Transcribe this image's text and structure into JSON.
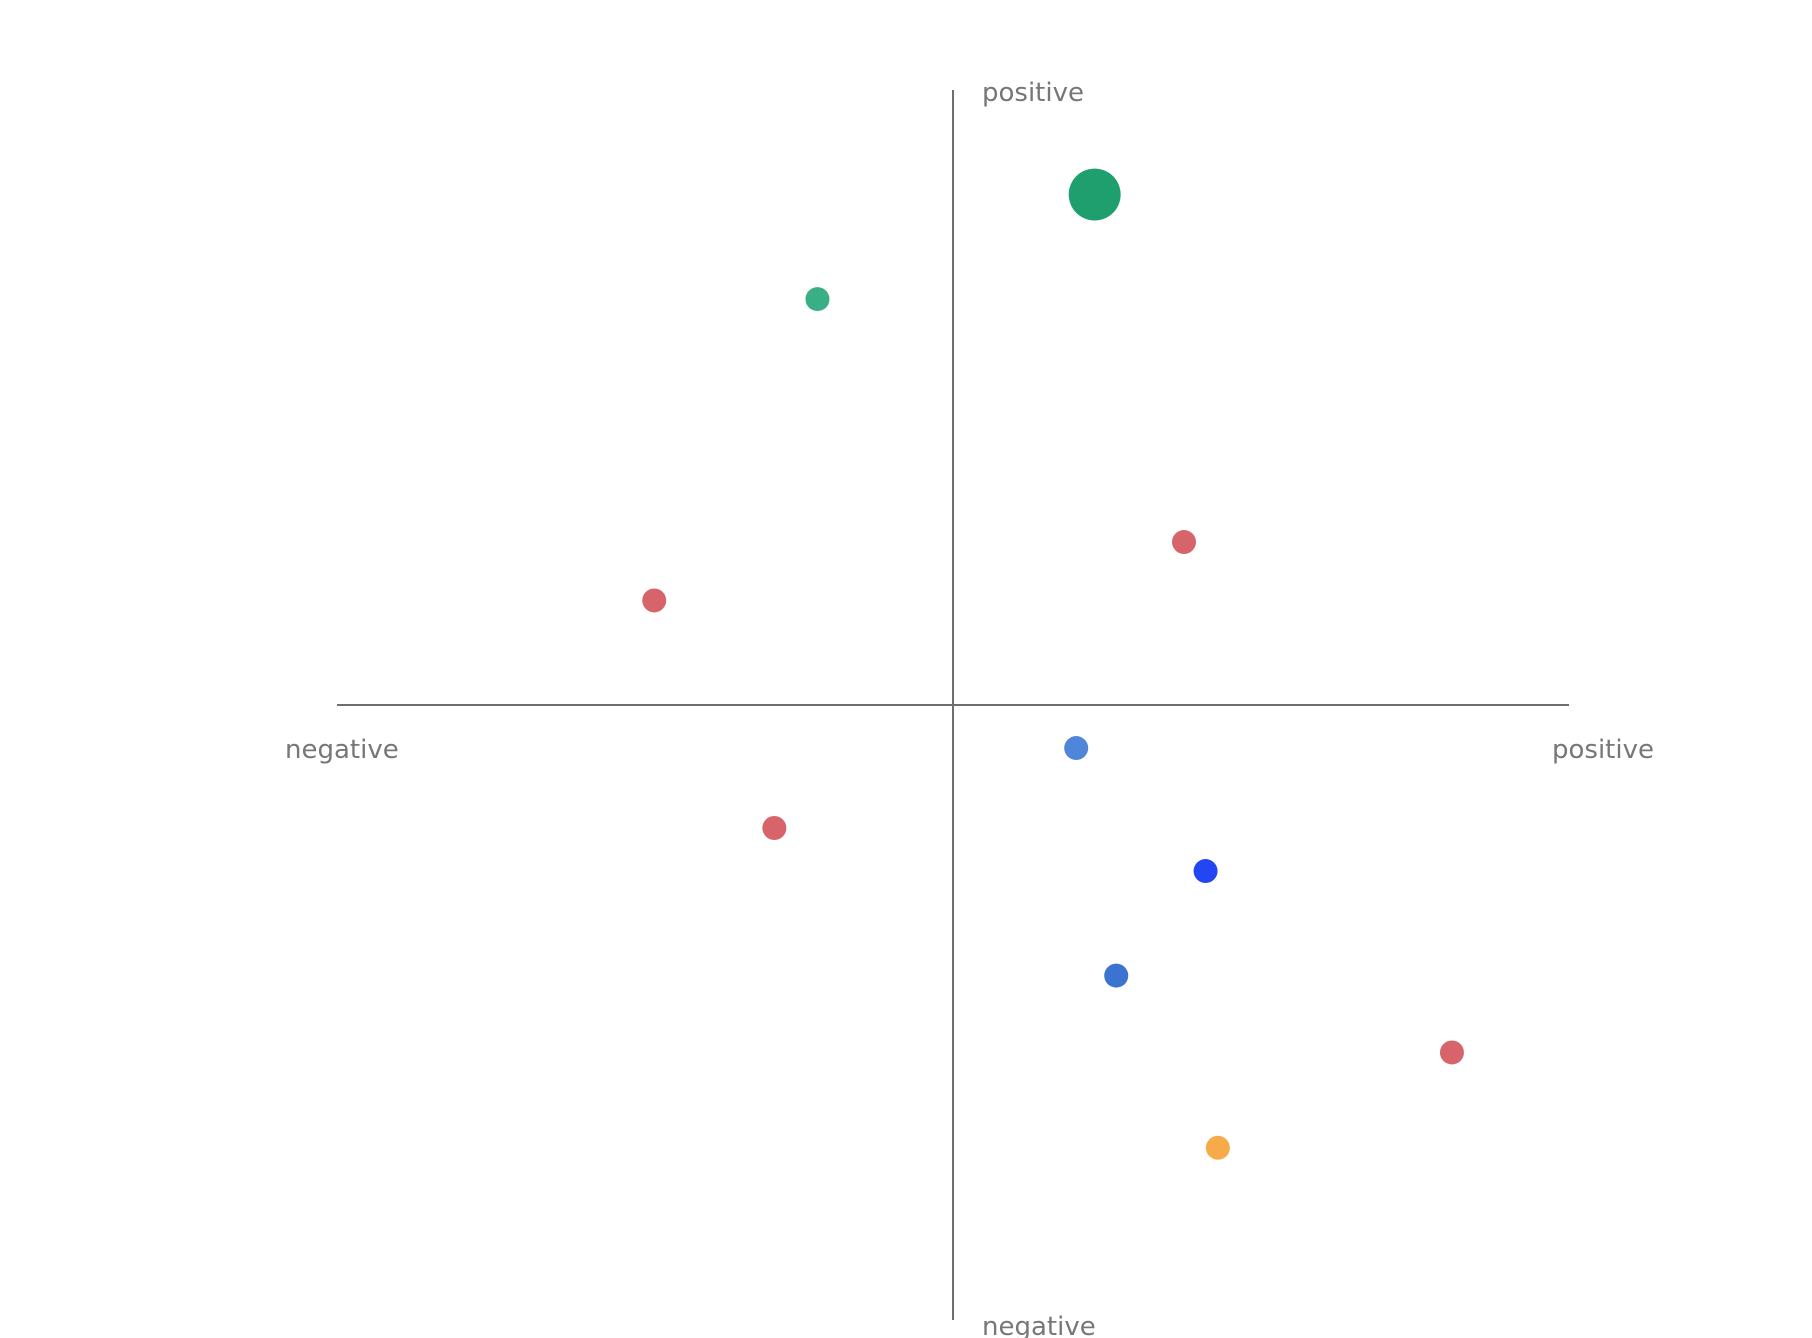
{
  "chart_data": {
    "type": "scatter",
    "title": "",
    "xlim": [
      -1,
      1
    ],
    "ylim": [
      -1,
      1
    ],
    "grid": false,
    "legend": "none",
    "axis_labels": {
      "x_negative": "negative",
      "x_positive": "positive",
      "y_positive": "positive",
      "y_negative": "negative"
    },
    "points": [
      {
        "x": 0.23,
        "y": 0.83,
        "size": 3.0,
        "color": "#1f9e6e"
      },
      {
        "x": -0.22,
        "y": 0.66,
        "size": 1.0,
        "color": "#3aae84"
      },
      {
        "x": 0.375,
        "y": 0.265,
        "size": 1.0,
        "color": "#d6646a"
      },
      {
        "x": -0.485,
        "y": 0.17,
        "size": 1.0,
        "color": "#d6646a"
      },
      {
        "x": 0.2,
        "y": -0.07,
        "size": 1.0,
        "color": "#5086d9"
      },
      {
        "x": -0.29,
        "y": -0.2,
        "size": 1.0,
        "color": "#d6646a"
      },
      {
        "x": 0.41,
        "y": -0.27,
        "size": 1.0,
        "color": "#2446f2"
      },
      {
        "x": 0.265,
        "y": -0.44,
        "size": 1.0,
        "color": "#3c72d0"
      },
      {
        "x": 0.81,
        "y": -0.565,
        "size": 1.0,
        "color": "#d6646a"
      },
      {
        "x": 0.43,
        "y": -0.72,
        "size": 1.0,
        "color": "#f7aa4a"
      }
    ]
  }
}
